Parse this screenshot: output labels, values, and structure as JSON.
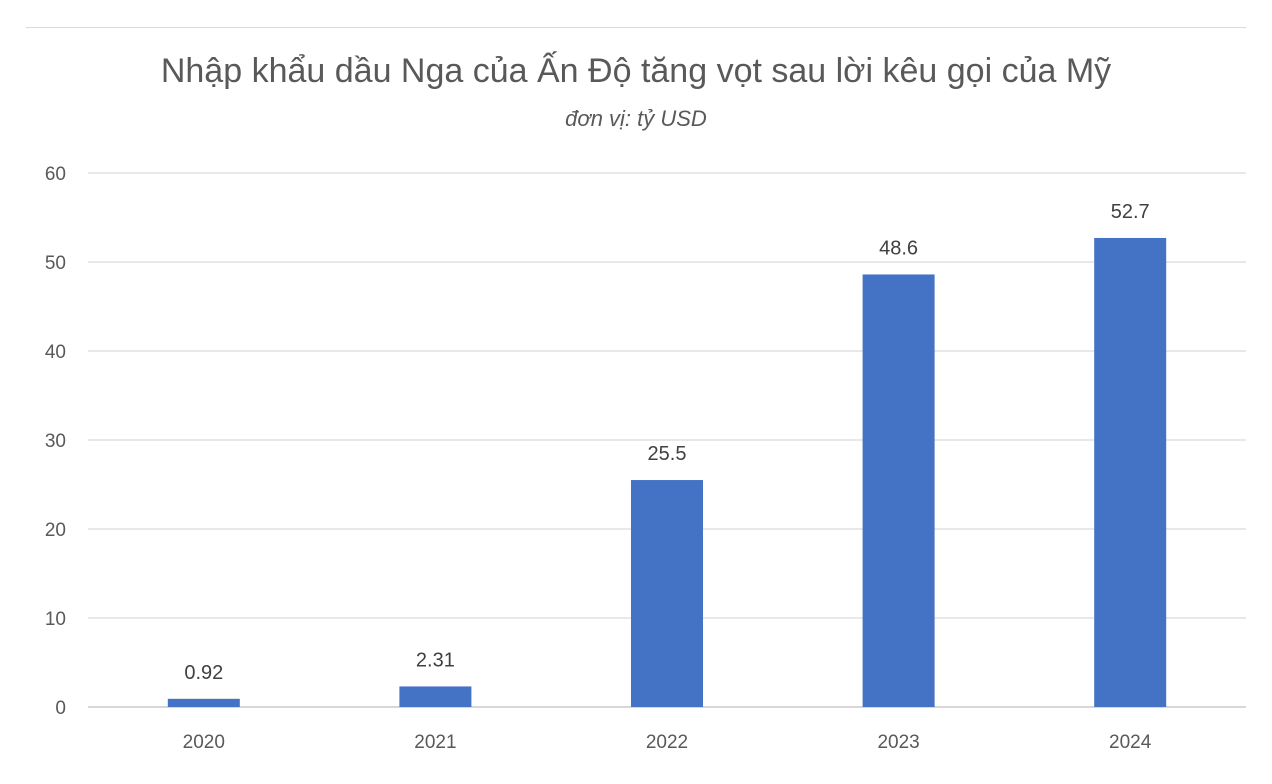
{
  "chart_data": {
    "type": "bar",
    "title": "Nhập khẩu dầu Nga của Ấn Độ tăng vọt sau lời kêu gọi của Mỹ",
    "subtitle": "đơn vị: tỷ USD",
    "xlabel": "",
    "ylabel": "",
    "categories": [
      "2020",
      "2021",
      "2022",
      "2023",
      "2024"
    ],
    "values": [
      0.92,
      2.31,
      25.5,
      48.6,
      52.7
    ],
    "data_labels": [
      "0.92",
      "2.31",
      "25.5",
      "48.6",
      "52.7"
    ],
    "ylim": [
      0,
      60
    ],
    "yticks": [
      0,
      10,
      20,
      30,
      40,
      50,
      60
    ],
    "grid": true,
    "legend": "none",
    "bar_color": "#4472C4",
    "grid_color": "#d9d9d9",
    "text_color": "#595959"
  }
}
